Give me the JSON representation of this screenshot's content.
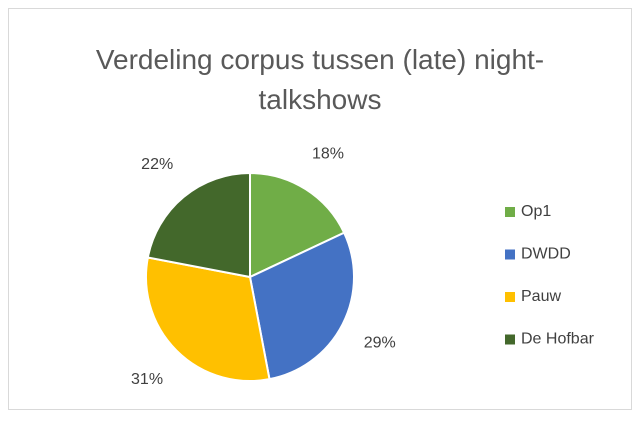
{
  "chart_data": {
    "type": "pie",
    "title": "Verdeling corpus tussen (late) night-talkshows",
    "categories": [
      "Op1",
      "DWDD",
      "Pauw",
      "De Hofbar"
    ],
    "values": [
      18,
      29,
      31,
      22
    ],
    "value_labels": [
      "18%",
      "29%",
      "31%",
      "22%"
    ],
    "colors": [
      "#70ad47",
      "#4472c4",
      "#ffc000",
      "#43682b"
    ],
    "legend": "right"
  }
}
